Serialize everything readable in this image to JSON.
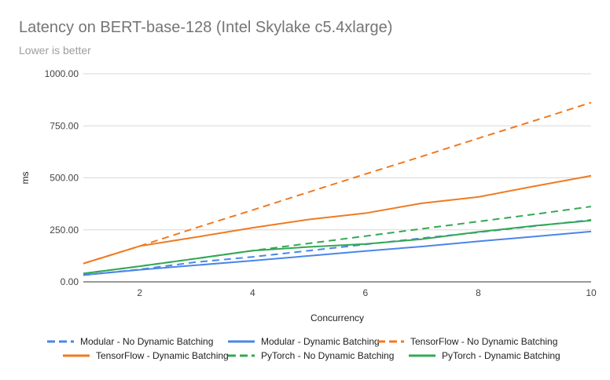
{
  "chart_data": {
    "type": "line",
    "title": "Latency on BERT-base-128 (Intel Skylake c5.4xlarge)",
    "subtitle": "Lower is better",
    "xlabel": "Concurrency",
    "ylabel": "ms",
    "xlim": [
      1,
      10
    ],
    "ylim": [
      0,
      1000
    ],
    "x_ticks": [
      2,
      4,
      6,
      8,
      10
    ],
    "y_ticks": [
      0,
      250,
      500,
      750,
      1000
    ],
    "y_tick_labels": [
      "0.00",
      "250.00",
      "500.00",
      "750.00",
      "1000.00"
    ],
    "grid": true,
    "legend_position": "bottom",
    "x": [
      1,
      2,
      3,
      4,
      5,
      6,
      7,
      8,
      9,
      10
    ],
    "series": [
      {
        "name": "Modular - No Dynamic Batching",
        "color": "#4a86e8",
        "dashed": true,
        "values": [
          32,
          60,
          95,
          120,
          150,
          180,
          210,
          238,
          268,
          298
        ]
      },
      {
        "name": "Modular - Dynamic Batching",
        "color": "#4a86e8",
        "dashed": false,
        "values": [
          33,
          58,
          80,
          102,
          125,
          148,
          170,
          195,
          218,
          242
        ]
      },
      {
        "name": "TensorFlow - No Dynamic Batching",
        "color": "#f07a20",
        "dashed": true,
        "values": [
          88,
          172,
          260,
          345,
          432,
          518,
          603,
          690,
          775,
          862
        ]
      },
      {
        "name": "TensorFlow - Dynamic Batching",
        "color": "#f07a20",
        "dashed": false,
        "values": [
          88,
          172,
          215,
          260,
          300,
          330,
          378,
          408,
          460,
          510
        ]
      },
      {
        "name": "PyTorch - No Dynamic Batching",
        "color": "#34a853",
        "dashed": true,
        "values": [
          40,
          75,
          112,
          150,
          185,
          220,
          255,
          290,
          325,
          362
        ]
      },
      {
        "name": "PyTorch - Dynamic Batching",
        "color": "#34a853",
        "dashed": false,
        "values": [
          40,
          75,
          112,
          150,
          168,
          182,
          205,
          240,
          270,
          295
        ]
      }
    ]
  }
}
